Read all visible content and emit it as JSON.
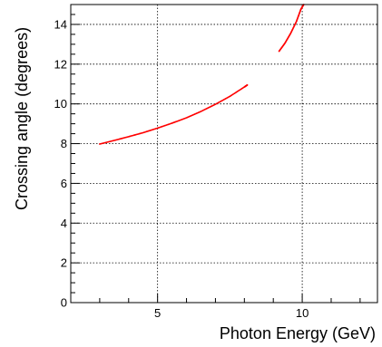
{
  "chart_data": {
    "type": "scatter",
    "title": "",
    "xlabel": "Photon Energy (GeV)",
    "ylabel": "Crossing angle (degrees)",
    "xlim": [
      2.0,
      12.6
    ],
    "ylim": [
      0,
      15.0
    ],
    "x_major_ticks": [
      5,
      10
    ],
    "x_major_tick_labels": [
      "5",
      "10"
    ],
    "y_major_ticks": [
      0,
      2,
      4,
      6,
      8,
      10,
      12,
      14
    ],
    "y_major_tick_labels": [
      "0",
      "2",
      "4",
      "6",
      "8",
      "10",
      "12",
      "14"
    ],
    "grid": true,
    "series_color": "#ff0000",
    "series": [
      {
        "points": [
          [
            3.0,
            7.98
          ],
          [
            3.5,
            8.16
          ],
          [
            4.0,
            8.35
          ],
          [
            4.5,
            8.55
          ],
          [
            5.0,
            8.78
          ],
          [
            5.5,
            9.03
          ],
          [
            6.0,
            9.3
          ],
          [
            6.5,
            9.62
          ],
          [
            7.0,
            9.98
          ],
          [
            7.5,
            10.38
          ],
          [
            8.0,
            10.85
          ],
          [
            8.1,
            10.95
          ]
        ]
      },
      {
        "points": [
          [
            9.2,
            12.65
          ],
          [
            9.4,
            13.05
          ],
          [
            9.6,
            13.55
          ],
          [
            9.8,
            14.15
          ],
          [
            9.95,
            14.75
          ],
          [
            10.05,
            15.0
          ]
        ]
      }
    ]
  }
}
